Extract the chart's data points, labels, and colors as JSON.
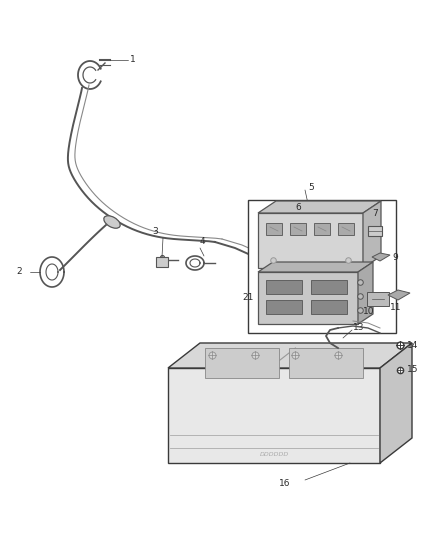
{
  "bg_color": "#ffffff",
  "fig_width": 4.38,
  "fig_height": 5.33,
  "dpi": 100,
  "line_color": "#3a3a3a",
  "label_color": "#2a2a2a",
  "label_fs": 6.5,
  "wire_color": "#555555",
  "part_fill": "#d8d8d8",
  "part_fill2": "#bbbbbb",
  "part_fill3": "#999999"
}
